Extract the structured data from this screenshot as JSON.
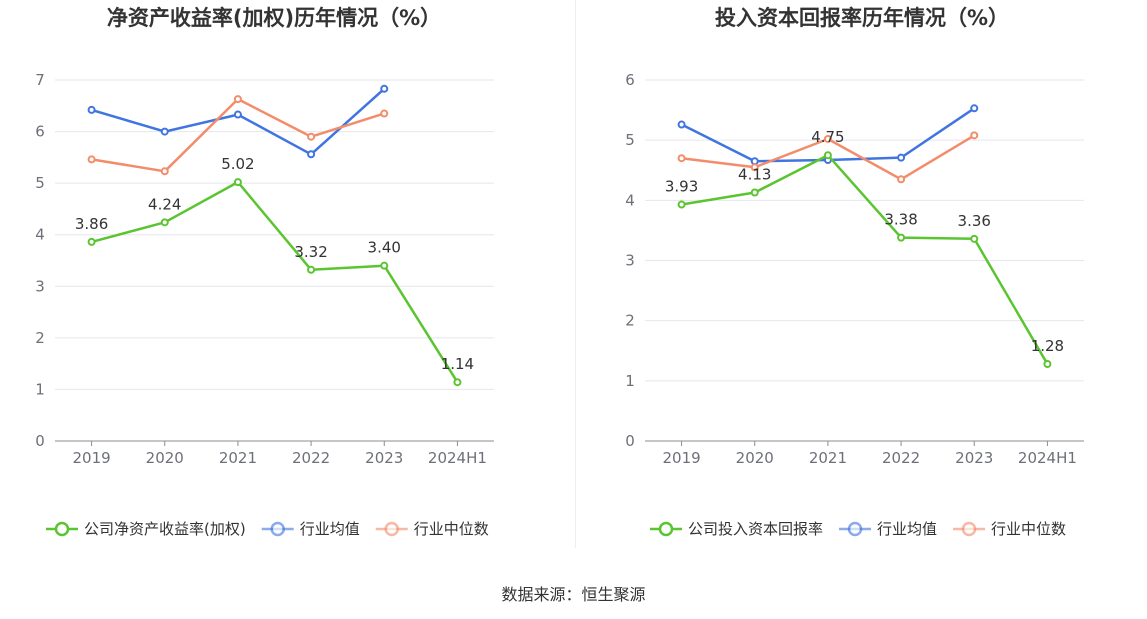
{
  "colors": {
    "company": "#5ac530",
    "industry_avg": "#3f74e1",
    "industry_median": "#f28c6a",
    "grid": "#e6e6ee",
    "axis": "#8c8c8c"
  },
  "chart_data": [
    {
      "type": "line",
      "title": "净资产收益率(加权)历年情况（%）",
      "categories": [
        "2019",
        "2020",
        "2021",
        "2022",
        "2023",
        "2024H1"
      ],
      "ylim": [
        0,
        7
      ],
      "yticks": [
        "0",
        "1",
        "2",
        "3",
        "4",
        "5",
        "6",
        "7"
      ],
      "grid": true,
      "legend_position": "bottom",
      "series": [
        {
          "name": "公司净资产收益率(加权)",
          "key": "company",
          "values": [
            3.86,
            4.24,
            5.02,
            3.32,
            3.4,
            1.14
          ],
          "labels": [
            "3.86",
            "4.24",
            "5.02",
            "3.32",
            "3.40",
            "1.14"
          ]
        },
        {
          "name": "行业均值",
          "key": "industry_avg",
          "values": [
            6.42,
            6.0,
            6.33,
            5.56,
            6.83,
            null
          ]
        },
        {
          "name": "行业中位数",
          "key": "industry_median",
          "values": [
            5.46,
            5.23,
            6.63,
            5.9,
            6.35,
            null
          ]
        }
      ]
    },
    {
      "type": "line",
      "title": "投入资本回报率历年情况（%）",
      "categories": [
        "2019",
        "2020",
        "2021",
        "2022",
        "2023",
        "2024H1"
      ],
      "ylim": [
        0,
        6
      ],
      "yticks": [
        "0",
        "1",
        "2",
        "3",
        "4",
        "5",
        "6"
      ],
      "grid": true,
      "legend_position": "bottom",
      "series": [
        {
          "name": "公司投入资本回报率",
          "key": "company",
          "values": [
            3.93,
            4.13,
            4.75,
            3.38,
            3.36,
            1.28
          ],
          "labels": [
            "3.93",
            "4.13",
            "4.75",
            "3.38",
            "3.36",
            "1.28"
          ]
        },
        {
          "name": "行业均值",
          "key": "industry_avg",
          "values": [
            5.26,
            4.65,
            4.67,
            4.71,
            5.53,
            null
          ]
        },
        {
          "name": "行业中位数",
          "key": "industry_median",
          "values": [
            4.7,
            4.55,
            5.02,
            4.35,
            5.08,
            null
          ]
        }
      ]
    }
  ],
  "source": "数据来源：恒生聚源"
}
